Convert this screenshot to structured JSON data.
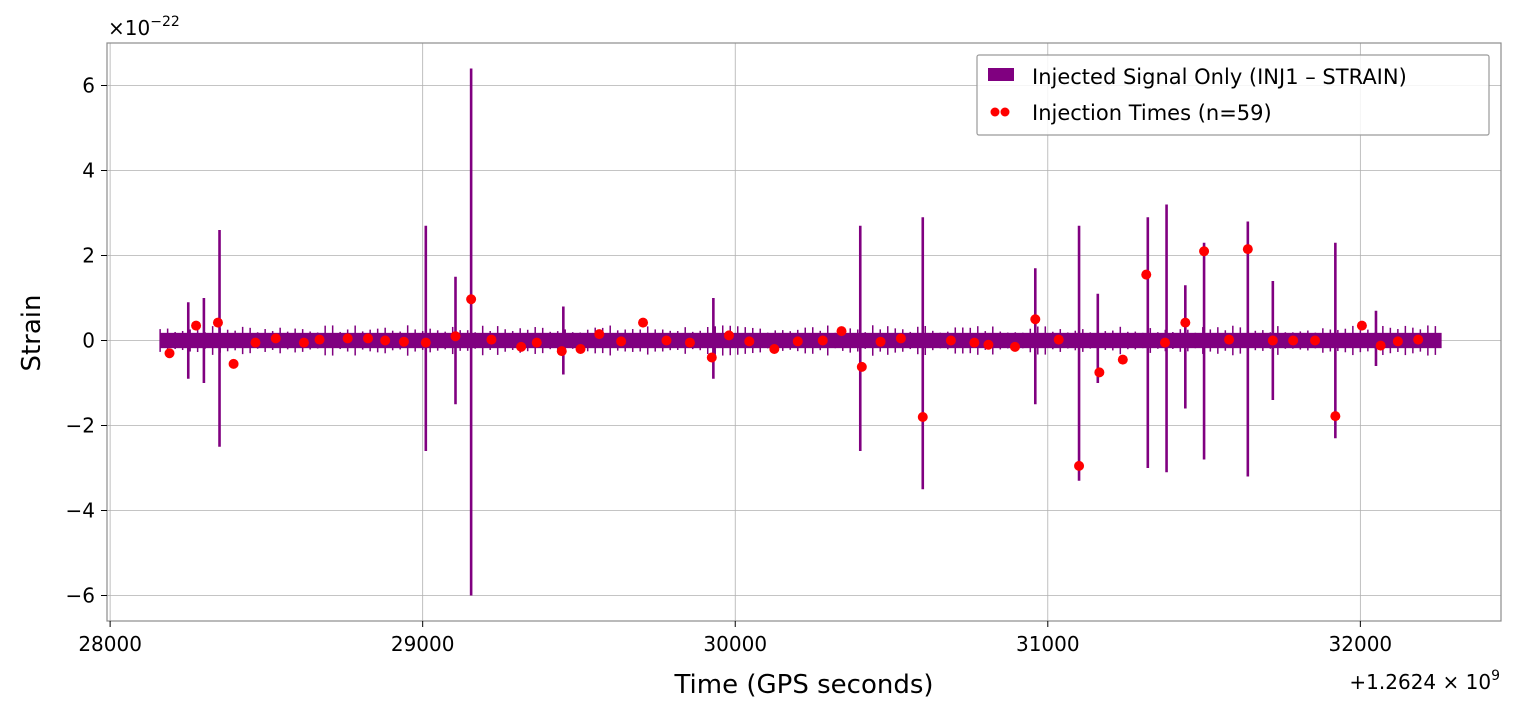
{
  "chart_data": {
    "type": "line",
    "title": "",
    "xlabel": "Time (GPS seconds)",
    "ylabel": "Strain",
    "x_offset_label": "+1.2624 × 10",
    "x_offset_exp": "9",
    "y_scale_label": "×10",
    "y_scale_exp": "−22",
    "xlim": [
      27990,
      32450
    ],
    "ylim": [
      -6.6,
      7.0
    ],
    "x_ticks": [
      {
        "value": 28000,
        "label": "28000"
      },
      {
        "value": 29000,
        "label": "29000"
      },
      {
        "value": 30000,
        "label": "30000"
      },
      {
        "value": 31000,
        "label": "31000"
      },
      {
        "value": 32000,
        "label": "32000"
      }
    ],
    "y_ticks": [
      {
        "value": 6,
        "label": "6"
      },
      {
        "value": 4,
        "label": "4"
      },
      {
        "value": 2,
        "label": "2"
      },
      {
        "value": 0,
        "label": "0"
      },
      {
        "value": -2,
        "label": "−2"
      },
      {
        "value": -4,
        "label": "−4"
      },
      {
        "value": -6,
        "label": "−6"
      }
    ],
    "grid": true,
    "legend_position": "top-right",
    "series": [
      {
        "name": "Injected Signal Only (INJ1 – STRAIN)",
        "kind": "area",
        "color": "#800080",
        "x_range": [
          28160,
          32260
        ],
        "baseline_band": 0.18,
        "bursts": [
          {
            "x": 28250,
            "top": 0.9,
            "bottom": -0.9
          },
          {
            "x": 28300,
            "top": 1.0,
            "bottom": -1.0
          },
          {
            "x": 28350,
            "top": 2.6,
            "bottom": -2.5
          },
          {
            "x": 29010,
            "top": 2.7,
            "bottom": -2.6
          },
          {
            "x": 29105,
            "top": 1.5,
            "bottom": -1.5
          },
          {
            "x": 29155,
            "top": 6.4,
            "bottom": -6.0
          },
          {
            "x": 29450,
            "top": 0.8,
            "bottom": -0.8
          },
          {
            "x": 29930,
            "top": 1.0,
            "bottom": -0.9
          },
          {
            "x": 30400,
            "top": 2.7,
            "bottom": -2.6
          },
          {
            "x": 30600,
            "top": 2.9,
            "bottom": -3.5
          },
          {
            "x": 30960,
            "top": 1.7,
            "bottom": -1.5
          },
          {
            "x": 31100,
            "top": 2.7,
            "bottom": -3.3
          },
          {
            "x": 31160,
            "top": 1.1,
            "bottom": -1.0
          },
          {
            "x": 31320,
            "top": 2.9,
            "bottom": -3.0
          },
          {
            "x": 31380,
            "top": 3.2,
            "bottom": -3.1
          },
          {
            "x": 31440,
            "top": 1.3,
            "bottom": -1.6
          },
          {
            "x": 31500,
            "top": 2.3,
            "bottom": -2.8
          },
          {
            "x": 31640,
            "top": 2.8,
            "bottom": -3.2
          },
          {
            "x": 31720,
            "top": 1.4,
            "bottom": -1.4
          },
          {
            "x": 31920,
            "top": 2.3,
            "bottom": -2.3
          },
          {
            "x": 32050,
            "top": 0.7,
            "bottom": -0.6
          }
        ]
      },
      {
        "name": "Injection Times (n=59)",
        "kind": "scatter",
        "color": "#ff0000",
        "points": [
          {
            "x": 28190,
            "y": -0.3
          },
          {
            "x": 28275,
            "y": 0.35
          },
          {
            "x": 28345,
            "y": 0.42
          },
          {
            "x": 28395,
            "y": -0.55
          },
          {
            "x": 28465,
            "y": -0.05
          },
          {
            "x": 28530,
            "y": 0.05
          },
          {
            "x": 28620,
            "y": -0.05
          },
          {
            "x": 28670,
            "y": 0.02
          },
          {
            "x": 28760,
            "y": 0.05
          },
          {
            "x": 28825,
            "y": 0.05
          },
          {
            "x": 28880,
            "y": 0.0
          },
          {
            "x": 28940,
            "y": -0.03
          },
          {
            "x": 29010,
            "y": -0.05
          },
          {
            "x": 29105,
            "y": 0.1
          },
          {
            "x": 29155,
            "y": 0.97
          },
          {
            "x": 29220,
            "y": 0.02
          },
          {
            "x": 29315,
            "y": -0.15
          },
          {
            "x": 29365,
            "y": -0.05
          },
          {
            "x": 29445,
            "y": -0.25
          },
          {
            "x": 29505,
            "y": -0.2
          },
          {
            "x": 29565,
            "y": 0.15
          },
          {
            "x": 29635,
            "y": -0.02
          },
          {
            "x": 29705,
            "y": 0.42
          },
          {
            "x": 29780,
            "y": 0.0
          },
          {
            "x": 29855,
            "y": -0.05
          },
          {
            "x": 29925,
            "y": -0.4
          },
          {
            "x": 29980,
            "y": 0.12
          },
          {
            "x": 30045,
            "y": -0.02
          },
          {
            "x": 30125,
            "y": -0.2
          },
          {
            "x": 30200,
            "y": -0.02
          },
          {
            "x": 30280,
            "y": 0.0
          },
          {
            "x": 30340,
            "y": 0.22
          },
          {
            "x": 30405,
            "y": -0.62
          },
          {
            "x": 30465,
            "y": -0.03
          },
          {
            "x": 30530,
            "y": 0.05
          },
          {
            "x": 30600,
            "y": -1.8
          },
          {
            "x": 30690,
            "y": 0.0
          },
          {
            "x": 30765,
            "y": -0.05
          },
          {
            "x": 30810,
            "y": -0.1
          },
          {
            "x": 30895,
            "y": -0.15
          },
          {
            "x": 30960,
            "y": 0.5
          },
          {
            "x": 31035,
            "y": 0.02
          },
          {
            "x": 31100,
            "y": -2.95
          },
          {
            "x": 31165,
            "y": -0.75
          },
          {
            "x": 31240,
            "y": -0.45
          },
          {
            "x": 31315,
            "y": 1.55
          },
          {
            "x": 31375,
            "y": -0.05
          },
          {
            "x": 31440,
            "y": 0.42
          },
          {
            "x": 31500,
            "y": 2.1
          },
          {
            "x": 31580,
            "y": 0.02
          },
          {
            "x": 31640,
            "y": 2.15
          },
          {
            "x": 31720,
            "y": 0.0
          },
          {
            "x": 31785,
            "y": 0.0
          },
          {
            "x": 31855,
            "y": 0.0
          },
          {
            "x": 31920,
            "y": -1.78
          },
          {
            "x": 32005,
            "y": 0.35
          },
          {
            "x": 32065,
            "y": -0.12
          },
          {
            "x": 32120,
            "y": -0.02
          },
          {
            "x": 32185,
            "y": 0.02
          }
        ]
      }
    ]
  }
}
